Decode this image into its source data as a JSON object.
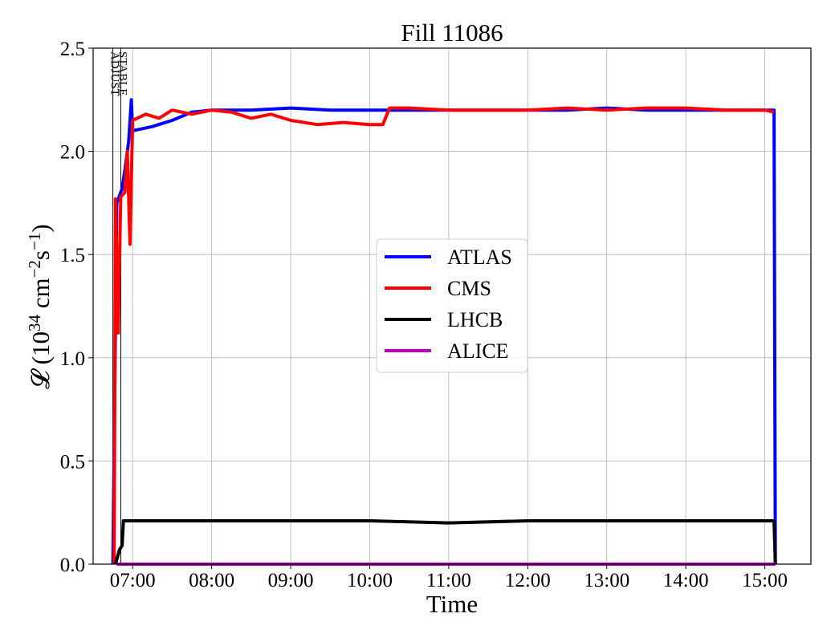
{
  "chart_data": {
    "type": "line",
    "title": "Fill 11086",
    "xlabel": "Time",
    "ylabel": "𝓛 (10",
    "ylabel_sup1": "34",
    "ylabel_mid": " cm",
    "ylabel_sup2": "−2",
    "ylabel_mid2": "s",
    "ylabel_sup3": "−1",
    "ylabel_end": ")",
    "xlim": [
      "06:30",
      "15:35"
    ],
    "ylim": [
      0.0,
      2.5
    ],
    "x_ticks": [
      "07:00",
      "08:00",
      "09:00",
      "10:00",
      "11:00",
      "12:00",
      "13:00",
      "14:00",
      "15:00"
    ],
    "y_ticks": [
      "0.0",
      "0.5",
      "1.0",
      "1.5",
      "2.0",
      "2.5"
    ],
    "grid": true,
    "legend_position": "center",
    "markers": [
      {
        "label": "ADJUST",
        "time": "06:45"
      },
      {
        "label": "STABLE",
        "time": "06:51"
      }
    ],
    "series": [
      {
        "name": "ATLAS",
        "color": "#0000ff",
        "points": [
          [
            "06:45",
            0.0
          ],
          [
            "06:48",
            1.75
          ],
          [
            "06:52",
            1.82
          ],
          [
            "06:55",
            1.95
          ],
          [
            "06:57",
            2.05
          ],
          [
            "06:59",
            2.25
          ],
          [
            "07:00",
            2.1
          ],
          [
            "07:15",
            2.12
          ],
          [
            "07:30",
            2.15
          ],
          [
            "07:45",
            2.19
          ],
          [
            "08:00",
            2.2
          ],
          [
            "08:30",
            2.2
          ],
          [
            "09:00",
            2.21
          ],
          [
            "09:30",
            2.2
          ],
          [
            "10:00",
            2.2
          ],
          [
            "10:30",
            2.2
          ],
          [
            "11:00",
            2.2
          ],
          [
            "11:30",
            2.2
          ],
          [
            "12:00",
            2.2
          ],
          [
            "12:30",
            2.2
          ],
          [
            "13:00",
            2.21
          ],
          [
            "13:30",
            2.2
          ],
          [
            "14:00",
            2.2
          ],
          [
            "14:30",
            2.2
          ],
          [
            "15:00",
            2.2
          ],
          [
            "15:07",
            2.2
          ],
          [
            "15:08",
            0.0
          ]
        ]
      },
      {
        "name": "CMS",
        "color": "#ff0000",
        "points": [
          [
            "06:46",
            0.0
          ],
          [
            "06:47",
            1.77
          ],
          [
            "06:49",
            1.12
          ],
          [
            "06:51",
            1.78
          ],
          [
            "06:54",
            1.8
          ],
          [
            "06:56",
            2.0
          ],
          [
            "06:58",
            1.55
          ],
          [
            "07:00",
            2.15
          ],
          [
            "07:10",
            2.18
          ],
          [
            "07:20",
            2.16
          ],
          [
            "07:30",
            2.2
          ],
          [
            "07:45",
            2.18
          ],
          [
            "08:00",
            2.2
          ],
          [
            "08:15",
            2.19
          ],
          [
            "08:30",
            2.16
          ],
          [
            "08:45",
            2.18
          ],
          [
            "09:00",
            2.15
          ],
          [
            "09:20",
            2.13
          ],
          [
            "09:40",
            2.14
          ],
          [
            "10:00",
            2.13
          ],
          [
            "10:10",
            2.13
          ],
          [
            "10:15",
            2.21
          ],
          [
            "10:30",
            2.21
          ],
          [
            "11:00",
            2.2
          ],
          [
            "11:30",
            2.2
          ],
          [
            "12:00",
            2.2
          ],
          [
            "12:30",
            2.21
          ],
          [
            "13:00",
            2.2
          ],
          [
            "13:30",
            2.21
          ],
          [
            "14:00",
            2.21
          ],
          [
            "14:30",
            2.2
          ],
          [
            "15:00",
            2.2
          ],
          [
            "15:07",
            2.19
          ]
        ]
      },
      {
        "name": "LHCB",
        "color": "#000000",
        "points": [
          [
            "06:47",
            0.0
          ],
          [
            "06:50",
            0.07
          ],
          [
            "06:52",
            0.09
          ],
          [
            "06:53",
            0.21
          ],
          [
            "07:00",
            0.21
          ],
          [
            "08:00",
            0.21
          ],
          [
            "09:00",
            0.21
          ],
          [
            "10:00",
            0.21
          ],
          [
            "11:00",
            0.2
          ],
          [
            "12:00",
            0.21
          ],
          [
            "13:00",
            0.21
          ],
          [
            "14:00",
            0.21
          ],
          [
            "15:00",
            0.21
          ],
          [
            "15:07",
            0.21
          ],
          [
            "15:08",
            0.0
          ]
        ]
      },
      {
        "name": "ALICE",
        "color": "#bf00bf",
        "points": [
          [
            "06:48",
            0.0
          ],
          [
            "15:08",
            0.0
          ]
        ]
      }
    ]
  }
}
